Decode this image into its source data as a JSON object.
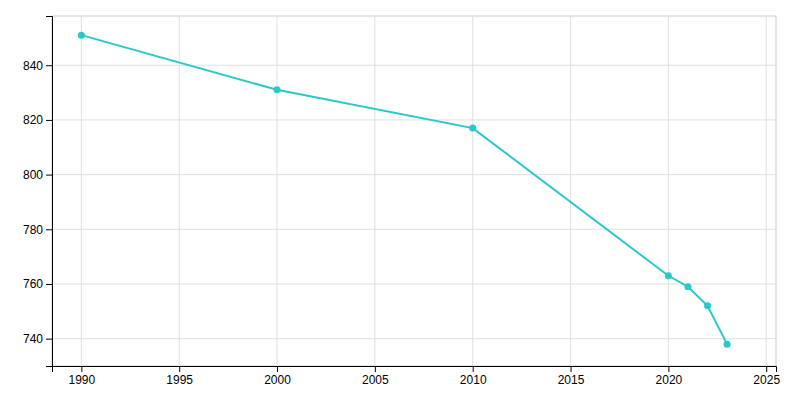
{
  "chart_data": {
    "type": "line",
    "x": [
      1990,
      2000,
      2010,
      2020,
      2021,
      2022,
      2023
    ],
    "values": [
      851,
      831,
      817,
      763,
      759,
      752,
      738
    ],
    "color": "#29c9c9",
    "marker": "circle",
    "xlim": [
      1988.5,
      2025.5
    ],
    "ylim": [
      730,
      858
    ],
    "xticks": [
      1990,
      1995,
      2000,
      2005,
      2010,
      2015,
      2020,
      2025
    ],
    "yticks": [
      740,
      760,
      780,
      800,
      820,
      840
    ],
    "grid": true
  }
}
